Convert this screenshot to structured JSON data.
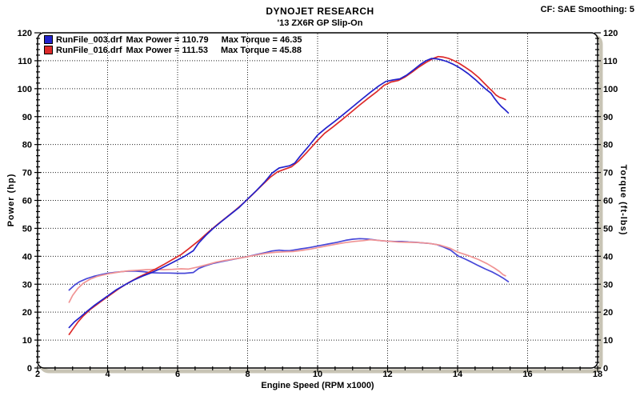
{
  "chart_data": {
    "type": "line",
    "title": "DYNOJET RESEARCH",
    "subtitle": "'13 ZX6R GP Slip-On",
    "correction": "CF: SAE  Smoothing: 5",
    "grid": true,
    "legend_position": "top-left-inside",
    "legend": [
      {
        "file": "RunFile_003.drf",
        "max_power": "Max Power = 110.79",
        "max_torque": "Max Torque = 46.35",
        "color": "#2222cc"
      },
      {
        "file": "RunFile_016.drf",
        "max_power": "Max Power = 111.53",
        "max_torque": "Max Torque = 45.88",
        "color": "#dd2a2a"
      }
    ],
    "x_axis": {
      "label": "Engine Speed (RPM x1000)",
      "min": 2,
      "max": 18,
      "major_tick_step": 2,
      "minor_tick_step": 0.5,
      "gridline_step": 2
    },
    "y_axis_left": {
      "label": "Power (hp)",
      "min": 0,
      "max": 120,
      "major_tick_step": 10,
      "minor_tick_step": 2,
      "gridline_step": 10
    },
    "y_axis_right": {
      "label": "Torque (ft-lbs)",
      "min": 0,
      "max": 120,
      "major_tick_step": 10,
      "minor_tick_step": 2
    },
    "series": [
      {
        "name": "RunFile_003.drf Torque",
        "axis": "right",
        "color": "#4848d8",
        "width": 1.7,
        "points": [
          [
            2.9,
            27.9
          ],
          [
            3.05,
            29.6
          ],
          [
            3.2,
            30.9
          ],
          [
            3.4,
            32.0
          ],
          [
            3.6,
            32.8
          ],
          [
            3.8,
            33.4
          ],
          [
            4.0,
            33.9
          ],
          [
            4.25,
            34.3
          ],
          [
            4.5,
            34.6
          ],
          [
            4.75,
            34.7
          ],
          [
            5.0,
            34.5
          ],
          [
            5.25,
            34.1
          ],
          [
            5.5,
            34.0
          ],
          [
            5.75,
            34.0
          ],
          [
            6.0,
            33.9
          ],
          [
            6.2,
            33.9
          ],
          [
            6.45,
            34.2
          ],
          [
            6.6,
            35.6
          ],
          [
            6.8,
            36.6
          ],
          [
            7.0,
            37.4
          ],
          [
            7.25,
            38.1
          ],
          [
            7.5,
            38.7
          ],
          [
            7.75,
            39.3
          ],
          [
            8.0,
            39.9
          ],
          [
            8.25,
            40.6
          ],
          [
            8.5,
            41.3
          ],
          [
            8.7,
            41.9
          ],
          [
            8.9,
            42.2
          ],
          [
            9.05,
            42.0
          ],
          [
            9.2,
            42.0
          ],
          [
            9.35,
            42.3
          ],
          [
            9.55,
            42.7
          ],
          [
            9.8,
            43.2
          ],
          [
            10.05,
            43.8
          ],
          [
            10.3,
            44.4
          ],
          [
            10.55,
            45.0
          ],
          [
            10.8,
            45.7
          ],
          [
            11.0,
            46.1
          ],
          [
            11.2,
            46.3
          ],
          [
            11.4,
            46.2
          ],
          [
            11.6,
            45.9
          ],
          [
            11.8,
            45.6
          ],
          [
            12.0,
            45.4
          ],
          [
            12.2,
            45.3
          ],
          [
            12.4,
            45.3
          ],
          [
            12.6,
            45.1
          ],
          [
            12.8,
            45.0
          ],
          [
            13.0,
            44.8
          ],
          [
            13.2,
            44.6
          ],
          [
            13.4,
            44.2
          ],
          [
            13.6,
            43.3
          ],
          [
            13.8,
            42.2
          ],
          [
            14.0,
            40.2
          ],
          [
            14.2,
            39.1
          ],
          [
            14.4,
            37.9
          ],
          [
            14.6,
            36.6
          ],
          [
            14.8,
            35.4
          ],
          [
            15.0,
            34.3
          ],
          [
            15.15,
            33.3
          ],
          [
            15.3,
            32.2
          ],
          [
            15.45,
            30.9
          ]
        ]
      },
      {
        "name": "RunFile_016.drf Torque",
        "axis": "right",
        "color": "#f09494",
        "width": 1.7,
        "points": [
          [
            2.9,
            23.5
          ],
          [
            3.0,
            26.0
          ],
          [
            3.15,
            28.5
          ],
          [
            3.3,
            30.3
          ],
          [
            3.5,
            31.8
          ],
          [
            3.7,
            32.8
          ],
          [
            3.9,
            33.4
          ],
          [
            4.1,
            33.9
          ],
          [
            4.35,
            34.4
          ],
          [
            4.6,
            34.8
          ],
          [
            4.85,
            35.0
          ],
          [
            5.1,
            35.2
          ],
          [
            5.35,
            35.3
          ],
          [
            5.6,
            35.2
          ],
          [
            5.85,
            35.3
          ],
          [
            6.1,
            35.5
          ],
          [
            6.3,
            35.4
          ],
          [
            6.6,
            36.2
          ],
          [
            6.9,
            37.2
          ],
          [
            7.1,
            37.9
          ],
          [
            7.35,
            38.5
          ],
          [
            7.6,
            39.0
          ],
          [
            7.85,
            39.5
          ],
          [
            8.1,
            40.1
          ],
          [
            8.35,
            40.7
          ],
          [
            8.6,
            41.2
          ],
          [
            8.85,
            41.5
          ],
          [
            9.1,
            41.6
          ],
          [
            9.3,
            41.7
          ],
          [
            9.55,
            42.1
          ],
          [
            9.8,
            42.6
          ],
          [
            10.05,
            43.2
          ],
          [
            10.3,
            43.8
          ],
          [
            10.55,
            44.4
          ],
          [
            10.8,
            44.9
          ],
          [
            11.05,
            45.3
          ],
          [
            11.3,
            45.6
          ],
          [
            11.5,
            45.9
          ],
          [
            11.7,
            45.7
          ],
          [
            11.9,
            45.5
          ],
          [
            12.1,
            45.3
          ],
          [
            12.3,
            45.1
          ],
          [
            12.6,
            45.0
          ],
          [
            12.9,
            44.9
          ],
          [
            13.2,
            44.6
          ],
          [
            13.5,
            44.0
          ],
          [
            13.8,
            42.8
          ],
          [
            14.0,
            41.5
          ],
          [
            14.3,
            40.3
          ],
          [
            14.6,
            38.8
          ],
          [
            14.85,
            37.3
          ],
          [
            15.05,
            35.8
          ],
          [
            15.2,
            34.5
          ],
          [
            15.3,
            33.4
          ],
          [
            15.37,
            33.0
          ]
        ]
      },
      {
        "name": "RunFile_016.drf Power",
        "axis": "left",
        "color": "#dd2a2a",
        "width": 1.7,
        "points": [
          [
            2.9,
            12.0
          ],
          [
            3.0,
            13.8
          ],
          [
            3.15,
            16.4
          ],
          [
            3.3,
            18.6
          ],
          [
            3.5,
            20.9
          ],
          [
            3.7,
            22.8
          ],
          [
            3.9,
            24.6
          ],
          [
            4.1,
            26.4
          ],
          [
            4.35,
            28.6
          ],
          [
            4.6,
            30.6
          ],
          [
            4.85,
            32.3
          ],
          [
            5.1,
            33.8
          ],
          [
            5.35,
            35.3
          ],
          [
            5.6,
            37.0
          ],
          [
            5.85,
            38.8
          ],
          [
            6.1,
            40.6
          ],
          [
            6.3,
            42.5
          ],
          [
            6.6,
            45.5
          ],
          [
            6.9,
            48.9
          ],
          [
            7.15,
            51.5
          ],
          [
            7.4,
            54.0
          ],
          [
            7.65,
            56.5
          ],
          [
            7.9,
            59.2
          ],
          [
            8.15,
            62.2
          ],
          [
            8.4,
            65.3
          ],
          [
            8.65,
            68.3
          ],
          [
            8.85,
            70.2
          ],
          [
            9.05,
            71.1
          ],
          [
            9.25,
            72.0
          ],
          [
            9.45,
            74.0
          ],
          [
            9.7,
            77.3
          ],
          [
            9.95,
            80.8
          ],
          [
            10.2,
            84.0
          ],
          [
            10.45,
            86.4
          ],
          [
            10.7,
            88.9
          ],
          [
            10.95,
            91.5
          ],
          [
            11.2,
            94.1
          ],
          [
            11.45,
            96.6
          ],
          [
            11.7,
            99.0
          ],
          [
            11.9,
            101.2
          ],
          [
            12.1,
            102.4
          ],
          [
            12.3,
            102.9
          ],
          [
            12.5,
            104.2
          ],
          [
            12.7,
            105.9
          ],
          [
            12.9,
            107.8
          ],
          [
            13.1,
            109.4
          ],
          [
            13.3,
            110.8
          ],
          [
            13.45,
            111.5
          ],
          [
            13.6,
            111.3
          ],
          [
            13.75,
            110.8
          ],
          [
            13.9,
            110.0
          ],
          [
            14.05,
            109.0
          ],
          [
            14.2,
            107.8
          ],
          [
            14.4,
            106.1
          ],
          [
            14.6,
            104.0
          ],
          [
            14.75,
            102.1
          ],
          [
            14.9,
            100.2
          ],
          [
            15.0,
            99.0
          ],
          [
            15.1,
            97.7
          ],
          [
            15.2,
            96.9
          ],
          [
            15.3,
            96.5
          ],
          [
            15.37,
            96.1
          ]
        ]
      },
      {
        "name": "RunFile_003.drf Power",
        "axis": "left",
        "color": "#2222cc",
        "width": 1.7,
        "points": [
          [
            2.9,
            14.5
          ],
          [
            3.05,
            16.5
          ],
          [
            3.2,
            18.0
          ],
          [
            3.4,
            20.2
          ],
          [
            3.6,
            22.2
          ],
          [
            3.8,
            24.0
          ],
          [
            4.0,
            25.8
          ],
          [
            4.25,
            28.0
          ],
          [
            4.5,
            29.8
          ],
          [
            4.75,
            31.5
          ],
          [
            5.0,
            32.9
          ],
          [
            5.25,
            34.1
          ],
          [
            5.5,
            35.5
          ],
          [
            5.75,
            37.1
          ],
          [
            6.0,
            38.7
          ],
          [
            6.2,
            40.0
          ],
          [
            6.45,
            42.0
          ],
          [
            6.6,
            44.7
          ],
          [
            6.8,
            47.4
          ],
          [
            7.0,
            49.8
          ],
          [
            7.25,
            52.4
          ],
          [
            7.5,
            54.9
          ],
          [
            7.75,
            57.4
          ],
          [
            8.0,
            60.5
          ],
          [
            8.25,
            63.5
          ],
          [
            8.5,
            66.8
          ],
          [
            8.7,
            69.8
          ],
          [
            8.9,
            71.6
          ],
          [
            9.05,
            72.0
          ],
          [
            9.2,
            72.4
          ],
          [
            9.35,
            73.4
          ],
          [
            9.5,
            75.8
          ],
          [
            9.75,
            79.5
          ],
          [
            10.0,
            83.4
          ],
          [
            10.25,
            86.0
          ],
          [
            10.5,
            88.4
          ],
          [
            10.75,
            90.9
          ],
          [
            11.0,
            93.5
          ],
          [
            11.25,
            96.1
          ],
          [
            11.5,
            98.6
          ],
          [
            11.75,
            101.0
          ],
          [
            11.95,
            102.6
          ],
          [
            12.15,
            103.1
          ],
          [
            12.35,
            103.5
          ],
          [
            12.55,
            104.9
          ],
          [
            12.75,
            106.8
          ],
          [
            12.95,
            108.8
          ],
          [
            13.1,
            110.0
          ],
          [
            13.25,
            110.8
          ],
          [
            13.4,
            110.7
          ],
          [
            13.55,
            110.3
          ],
          [
            13.7,
            109.7
          ],
          [
            13.85,
            108.9
          ],
          [
            14.0,
            107.9
          ],
          [
            14.15,
            106.7
          ],
          [
            14.3,
            105.4
          ],
          [
            14.5,
            103.3
          ],
          [
            14.65,
            101.6
          ],
          [
            14.8,
            99.9
          ],
          [
            14.95,
            98.4
          ],
          [
            15.05,
            96.6
          ],
          [
            15.15,
            95.0
          ],
          [
            15.25,
            93.6
          ],
          [
            15.35,
            92.5
          ],
          [
            15.45,
            91.3
          ]
        ]
      }
    ],
    "frame_color": "#000000",
    "shadow_color": "#c8c4b5",
    "grid_color": "#222222"
  }
}
